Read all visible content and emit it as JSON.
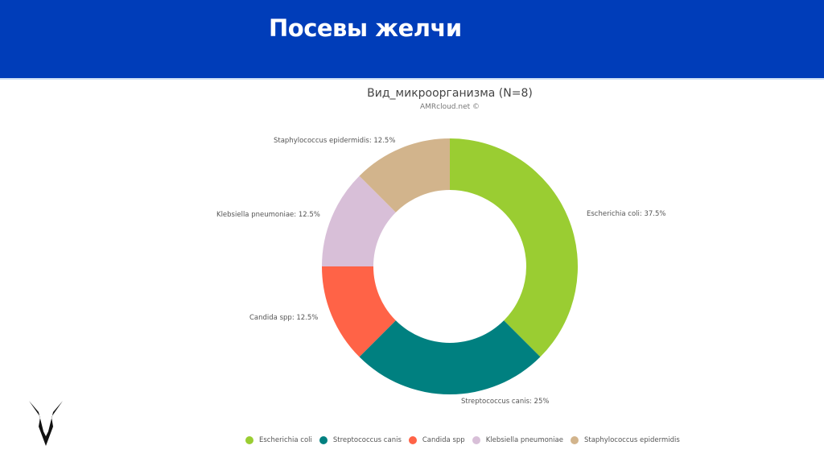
{
  "header": {
    "title": "Посевы желчи",
    "background": "#003db9"
  },
  "chart_data": {
    "type": "pie",
    "variant": "donut",
    "title": "Вид_микроорганизма (N=8)",
    "subtitle": "AMRcloud.net ©",
    "categories": [
      "Escherichia coli",
      "Streptococcus canis",
      "Candida spp",
      "Klebsiella pneumoniae",
      "Staphylococcus epidermidis"
    ],
    "values": [
      37.5,
      25,
      12.5,
      12.5,
      12.5
    ],
    "counts": [
      3,
      2,
      1,
      1,
      1
    ],
    "colors": [
      "#9acd32",
      "#008080",
      "#ff6347",
      "#d8bfd8",
      "#d2b48c"
    ],
    "labels": [
      "Escherichia coli: 37.5%",
      "Streptococcus canis: 25%",
      "Candida spp: 12.5%",
      "Klebsiella pneumoniae: 12.5%",
      "Staphylococcus epidermidis: 12.5%"
    ],
    "legend_position": "bottom"
  }
}
